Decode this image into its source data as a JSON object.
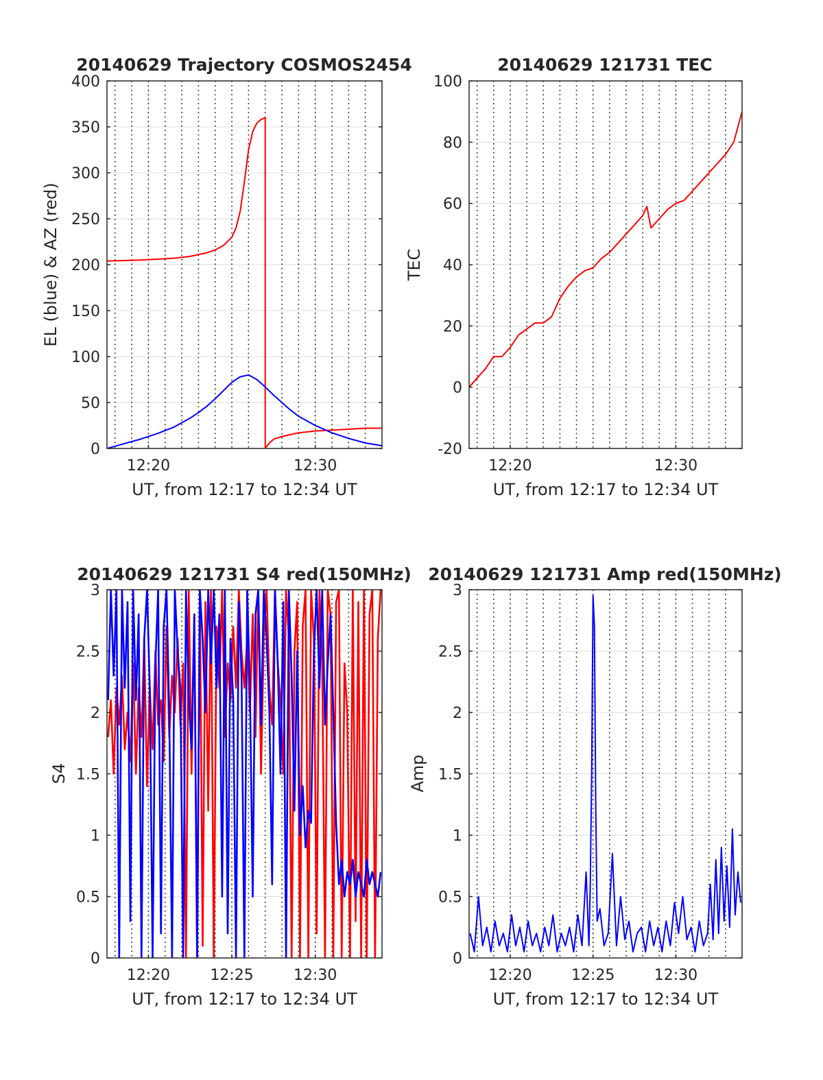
{
  "colors": {
    "el": "#0000ff",
    "az": "#ff0000",
    "tec": "#ff0000",
    "s4_red": "#ff0000",
    "s4_blue": "#0000ff",
    "amp": "#0000ff",
    "grid": "#dcdcdc",
    "minor_grid": "#000000",
    "axis": "#262626"
  },
  "chart_data": [
    {
      "id": "trajectory",
      "type": "line",
      "title": "20140629 Trajectory COSMOS2454",
      "xlabel": "UT, from 12:17 to 12:34 UT",
      "ylabel": "EL (blue) & AZ (red)",
      "xlim": [
        "12:17:31",
        "12:34:00"
      ],
      "ylim": [
        0,
        400
      ],
      "yticks": [
        0,
        50,
        100,
        150,
        200,
        250,
        300,
        350,
        400
      ],
      "xticks": [
        "12:20",
        "12:30"
      ],
      "minor_grid": true,
      "series": [
        {
          "color_key": "az",
          "x": [
            "12:17:31",
            "12:18:30",
            "12:19:30",
            "12:20:30",
            "12:21:30",
            "12:22:30",
            "12:23:30",
            "12:24:00",
            "12:24:30",
            "12:25:00",
            "12:25:15",
            "12:25:30",
            "12:25:45",
            "12:26:00",
            "12:26:15",
            "12:26:30",
            "12:26:45",
            "12:27:00",
            "12:27:00",
            "12:27:15",
            "12:27:30",
            "12:28:00",
            "12:28:30",
            "12:29:00",
            "12:30:00",
            "12:31:00",
            "12:32:00",
            "12:33:00",
            "12:34:00"
          ],
          "y": [
            204,
            204.5,
            205,
            206,
            207,
            209,
            213,
            216,
            221,
            230,
            240,
            258,
            290,
            325,
            345,
            354,
            358,
            360,
            0,
            6,
            10,
            13,
            15,
            17,
            19,
            20,
            21,
            22,
            22
          ]
        },
        {
          "color_key": "el",
          "x": [
            "12:17:31",
            "12:18:30",
            "12:19:30",
            "12:20:30",
            "12:21:30",
            "12:22:00",
            "12:22:30",
            "12:23:00",
            "12:23:30",
            "12:24:00",
            "12:24:30",
            "12:25:00",
            "12:25:30",
            "12:26:00",
            "12:26:30",
            "12:27:00",
            "12:27:30",
            "12:28:00",
            "12:28:30",
            "12:29:00",
            "12:30:00",
            "12:31:00",
            "12:32:00",
            "12:33:00",
            "12:34:00"
          ],
          "y": [
            0,
            5,
            10,
            16,
            23,
            28,
            33,
            39,
            46,
            54,
            63,
            72,
            78,
            80,
            75,
            67,
            58,
            50,
            42,
            35,
            25,
            17,
            11,
            6,
            3
          ]
        }
      ]
    },
    {
      "id": "tec",
      "type": "line",
      "title": "20140629 121731 TEC",
      "xlabel": "UT, from 12:17 to 12:34 UT",
      "ylabel": "TEC",
      "xlim": [
        "12:17:31",
        "12:34:00"
      ],
      "ylim": [
        -20,
        100
      ],
      "yticks": [
        -20,
        0,
        20,
        40,
        60,
        80,
        100
      ],
      "xticks": [
        "12:20",
        "12:30"
      ],
      "minor_grid": true,
      "series": [
        {
          "color_key": "tec",
          "x": [
            "12:17:31",
            "12:18:00",
            "12:18:30",
            "12:19:00",
            "12:19:30",
            "12:20:00",
            "12:20:30",
            "12:21:00",
            "12:21:30",
            "12:22:00",
            "12:22:30",
            "12:23:00",
            "12:23:30",
            "12:24:00",
            "12:24:30",
            "12:25:00",
            "12:25:30",
            "12:26:00",
            "12:26:30",
            "12:27:00",
            "12:27:30",
            "12:28:00",
            "12:28:15",
            "12:28:30",
            "12:29:00",
            "12:29:30",
            "12:30:00",
            "12:30:30",
            "12:31:00",
            "12:31:30",
            "12:32:00",
            "12:32:30",
            "12:33:00",
            "12:33:30",
            "12:34:00"
          ],
          "y": [
            0,
            3,
            6,
            10,
            10,
            13,
            17,
            19,
            21,
            21,
            23,
            29,
            33,
            36,
            38,
            39,
            42,
            44,
            47,
            50,
            53,
            56,
            59,
            52,
            55,
            58,
            60,
            61,
            64,
            67,
            70,
            73,
            76,
            80,
            90
          ]
        }
      ]
    },
    {
      "id": "s4",
      "type": "line",
      "title": "20140629 121731 S4 red(150MHz)",
      "xlabel": "UT, from 12:17 to 12:34 UT",
      "ylabel": "S4",
      "xlim": [
        "12:17:31",
        "12:34:00"
      ],
      "ylim": [
        0,
        3
      ],
      "yticks": [
        0,
        0.5,
        1,
        1.5,
        2,
        2.5,
        3
      ],
      "xticks": [
        "12:20",
        "12:25",
        "12:30"
      ],
      "minor_grid": true,
      "series": [
        {
          "color_key": "s4_red",
          "x": [
            "12:17:35",
            "12:17:45",
            "12:17:55",
            "12:18:05",
            "12:18:15",
            "12:18:25",
            "12:18:35",
            "12:18:45",
            "12:18:55",
            "12:19:05",
            "12:19:15",
            "12:19:25",
            "12:19:35",
            "12:19:45",
            "12:19:55",
            "12:20:05",
            "12:20:15",
            "12:20:25",
            "12:20:35",
            "12:20:45",
            "12:20:55",
            "12:21:05",
            "12:21:15",
            "12:21:25",
            "12:21:35",
            "12:21:45",
            "12:21:55",
            "12:22:05",
            "12:22:15",
            "12:22:25",
            "12:22:35",
            "12:22:45",
            "12:22:55",
            "12:23:05",
            "12:23:15",
            "12:23:25",
            "12:23:35",
            "12:23:45",
            "12:23:55",
            "12:24:05",
            "12:24:15",
            "12:24:25",
            "12:24:35",
            "12:24:45",
            "12:24:55",
            "12:25:05",
            "12:25:15",
            "12:25:25",
            "12:25:35",
            "12:25:45",
            "12:25:55",
            "12:26:05",
            "12:26:15",
            "12:26:25",
            "12:26:35",
            "12:26:45",
            "12:26:55",
            "12:27:05",
            "12:27:15",
            "12:27:25",
            "12:27:35",
            "12:27:45",
            "12:27:55",
            "12:28:05",
            "12:28:15",
            "12:28:25",
            "12:28:35",
            "12:28:45",
            "12:28:55",
            "12:29:05",
            "12:29:15",
            "12:29:25",
            "12:29:35",
            "12:29:45",
            "12:29:55",
            "12:30:05",
            "12:30:15",
            "12:30:25",
            "12:30:35",
            "12:30:45",
            "12:30:55",
            "12:31:05",
            "12:31:15",
            "12:31:25",
            "12:31:35",
            "12:31:45",
            "12:31:55",
            "12:32:05",
            "12:32:15",
            "12:32:25",
            "12:32:35",
            "12:32:45",
            "12:32:55",
            "12:33:05",
            "12:33:15",
            "12:33:25",
            "12:33:35",
            "12:33:45",
            "12:33:55"
          ],
          "y": [
            1.8,
            2.1,
            1.5,
            2.2,
            1.9,
            2.3,
            1.7,
            2.0,
            1.6,
            2.4,
            1.5,
            2.2,
            1.8,
            2.6,
            1.4,
            2.2,
            1.7,
            2.5,
            1.9,
            2.1,
            1.6,
            2.7,
            1.8,
            2.3,
            2.0,
            2.6,
            1.9,
            2.4,
            0.0,
            3.0,
            1.5,
            2.8,
            0.0,
            3.0,
            0.1,
            2.9,
            1.2,
            3.0,
            0.0,
            2.7,
            2.2,
            3.0,
            1.8,
            2.4,
            2.1,
            2.7,
            2.2,
            3.0,
            2.5,
            2.2,
            2.6,
            2.0,
            2.8,
            1.8,
            3.0,
            1.5,
            2.6,
            3.0,
            2.2,
            1.9,
            3.0,
            2.4,
            2.1,
            1.5,
            3.0,
            2.6,
            0.0,
            2.5,
            2.9,
            0.0,
            2.7,
            3.0,
            0.0,
            3.0,
            2.6,
            0.2,
            3.0,
            2.4,
            0.0,
            3.0,
            2.8,
            0.0,
            2.9,
            3.0,
            0.0,
            2.4,
            2.0,
            0.0,
            3.0,
            0.3,
            2.9,
            0.0,
            3.0,
            0.0,
            2.8,
            3.0,
            0.0,
            2.6,
            3.0
          ]
        },
        {
          "color_key": "s4_blue",
          "x": [
            "12:17:35",
            "12:17:45",
            "12:17:55",
            "12:18:05",
            "12:18:15",
            "12:18:25",
            "12:18:35",
            "12:18:45",
            "12:18:55",
            "12:19:05",
            "12:19:15",
            "12:19:25",
            "12:19:35",
            "12:19:45",
            "12:19:55",
            "12:20:05",
            "12:20:15",
            "12:20:25",
            "12:20:35",
            "12:20:45",
            "12:20:55",
            "12:21:05",
            "12:21:15",
            "12:21:25",
            "12:21:35",
            "12:21:45",
            "12:21:55",
            "12:22:05",
            "12:22:15",
            "12:22:25",
            "12:22:35",
            "12:22:45",
            "12:22:55",
            "12:23:05",
            "12:23:15",
            "12:23:25",
            "12:23:35",
            "12:23:45",
            "12:23:55",
            "12:24:05",
            "12:24:15",
            "12:24:25",
            "12:24:35",
            "12:24:45",
            "12:24:55",
            "12:25:05",
            "12:25:15",
            "12:25:25",
            "12:25:35",
            "12:25:45",
            "12:25:55",
            "12:26:05",
            "12:26:15",
            "12:26:25",
            "12:26:35",
            "12:26:45",
            "12:26:55",
            "12:27:05",
            "12:27:15",
            "12:27:25",
            "12:27:35",
            "12:27:45",
            "12:27:55",
            "12:28:05",
            "12:28:15",
            "12:28:25",
            "12:28:35",
            "12:28:45",
            "12:28:55",
            "12:29:05",
            "12:29:15",
            "12:29:25",
            "12:29:35",
            "12:29:45",
            "12:29:55",
            "12:30:05",
            "12:30:15",
            "12:30:25",
            "12:30:35",
            "12:30:45",
            "12:30:55",
            "12:31:05",
            "12:31:15",
            "12:31:25",
            "12:31:35",
            "12:31:45",
            "12:31:55",
            "12:32:05",
            "12:32:15",
            "12:32:25",
            "12:32:35",
            "12:32:45",
            "12:32:55",
            "12:33:05",
            "12:33:15",
            "12:33:25",
            "12:33:35",
            "12:33:45",
            "12:33:55"
          ],
          "y": [
            2.1,
            3.0,
            2.3,
            3.0,
            0.0,
            3.0,
            2.2,
            2.9,
            0.3,
            3.0,
            2.1,
            2.8,
            0.0,
            2.6,
            3.0,
            2.2,
            0.0,
            2.4,
            3.0,
            0.2,
            2.7,
            3.0,
            2.0,
            0.0,
            3.0,
            2.5,
            2.2,
            0.0,
            3.0,
            2.1,
            1.7,
            2.8,
            0.0,
            3.0,
            2.6,
            2.0,
            3.0,
            2.4,
            3.0,
            2.2,
            2.8,
            0.5,
            3.0,
            0.2,
            2.6,
            2.1,
            0.0,
            2.9,
            2.3,
            0.0,
            3.0,
            2.2,
            0.5,
            2.8,
            3.0,
            1.9,
            3.0,
            2.6,
            2.0,
            0.6,
            3.0,
            2.4,
            1.5,
            2.9,
            0.0,
            3.0,
            2.3,
            1.2,
            2.5,
            1.0,
            1.4,
            0.9,
            1.2,
            1.1,
            2.5,
            3.0,
            2.2,
            3.0,
            1.9,
            2.4,
            2.8,
            2.0,
            1.1,
            0.6,
            0.8,
            0.5,
            0.7,
            0.6,
            0.8,
            0.5,
            0.7,
            0.6,
            0.5,
            0.8,
            0.6,
            0.7,
            0.6,
            0.5,
            0.7
          ]
        }
      ]
    },
    {
      "id": "amp",
      "type": "line",
      "title": "20140629 121731 Amp red(150MHz)",
      "xlabel": "UT, from 12:17 to 12:34 UT",
      "ylabel": "Amp",
      "xlim": [
        "12:17:31",
        "12:34:00"
      ],
      "ylim": [
        0,
        3
      ],
      "yticks": [
        0,
        0.5,
        1,
        1.5,
        2,
        2.5,
        3
      ],
      "xticks": [
        "12:20",
        "12:25",
        "12:30"
      ],
      "minor_grid": true,
      "series": [
        {
          "color_key": "amp",
          "x": [
            "12:17:35",
            "12:17:50",
            "12:18:05",
            "12:18:20",
            "12:18:35",
            "12:18:50",
            "12:19:05",
            "12:19:20",
            "12:19:35",
            "12:19:50",
            "12:20:05",
            "12:20:20",
            "12:20:35",
            "12:20:50",
            "12:21:05",
            "12:21:20",
            "12:21:35",
            "12:21:50",
            "12:22:05",
            "12:22:20",
            "12:22:35",
            "12:22:50",
            "12:23:05",
            "12:23:20",
            "12:23:35",
            "12:23:50",
            "12:24:05",
            "12:24:20",
            "12:24:35",
            "12:24:45",
            "12:24:50",
            "12:24:55",
            "12:25:00",
            "12:25:05",
            "12:25:10",
            "12:25:15",
            "12:25:25",
            "12:25:40",
            "12:25:55",
            "12:26:10",
            "12:26:25",
            "12:26:40",
            "12:26:55",
            "12:27:10",
            "12:27:25",
            "12:27:40",
            "12:27:55",
            "12:28:10",
            "12:28:25",
            "12:28:40",
            "12:28:55",
            "12:29:10",
            "12:29:25",
            "12:29:40",
            "12:29:55",
            "12:30:10",
            "12:30:25",
            "12:30:40",
            "12:30:55",
            "12:31:10",
            "12:31:25",
            "12:31:40",
            "12:31:55",
            "12:32:05",
            "12:32:15",
            "12:32:25",
            "12:32:35",
            "12:32:45",
            "12:32:55",
            "12:33:05",
            "12:33:15",
            "12:33:25",
            "12:33:35",
            "12:33:45",
            "12:33:55"
          ],
          "y": [
            0.2,
            0.05,
            0.5,
            0.1,
            0.25,
            0.05,
            0.3,
            0.1,
            0.2,
            0.05,
            0.35,
            0.1,
            0.25,
            0.05,
            0.3,
            0.1,
            0.2,
            0.05,
            0.25,
            0.1,
            0.35,
            0.05,
            0.2,
            0.1,
            0.25,
            0.05,
            0.35,
            0.1,
            0.7,
            0.1,
            0.6,
            1.5,
            2.95,
            2.7,
            1.2,
            0.3,
            0.4,
            0.1,
            0.2,
            0.85,
            0.1,
            0.5,
            0.15,
            0.3,
            0.05,
            0.2,
            0.25,
            0.05,
            0.3,
            0.1,
            0.25,
            0.05,
            0.3,
            0.1,
            0.45,
            0.2,
            0.5,
            0.15,
            0.25,
            0.05,
            0.3,
            0.1,
            0.2,
            0.6,
            0.15,
            0.8,
            0.2,
            0.9,
            0.3,
            0.75,
            0.25,
            1.05,
            0.35,
            0.7,
            0.45
          ]
        }
      ]
    }
  ]
}
